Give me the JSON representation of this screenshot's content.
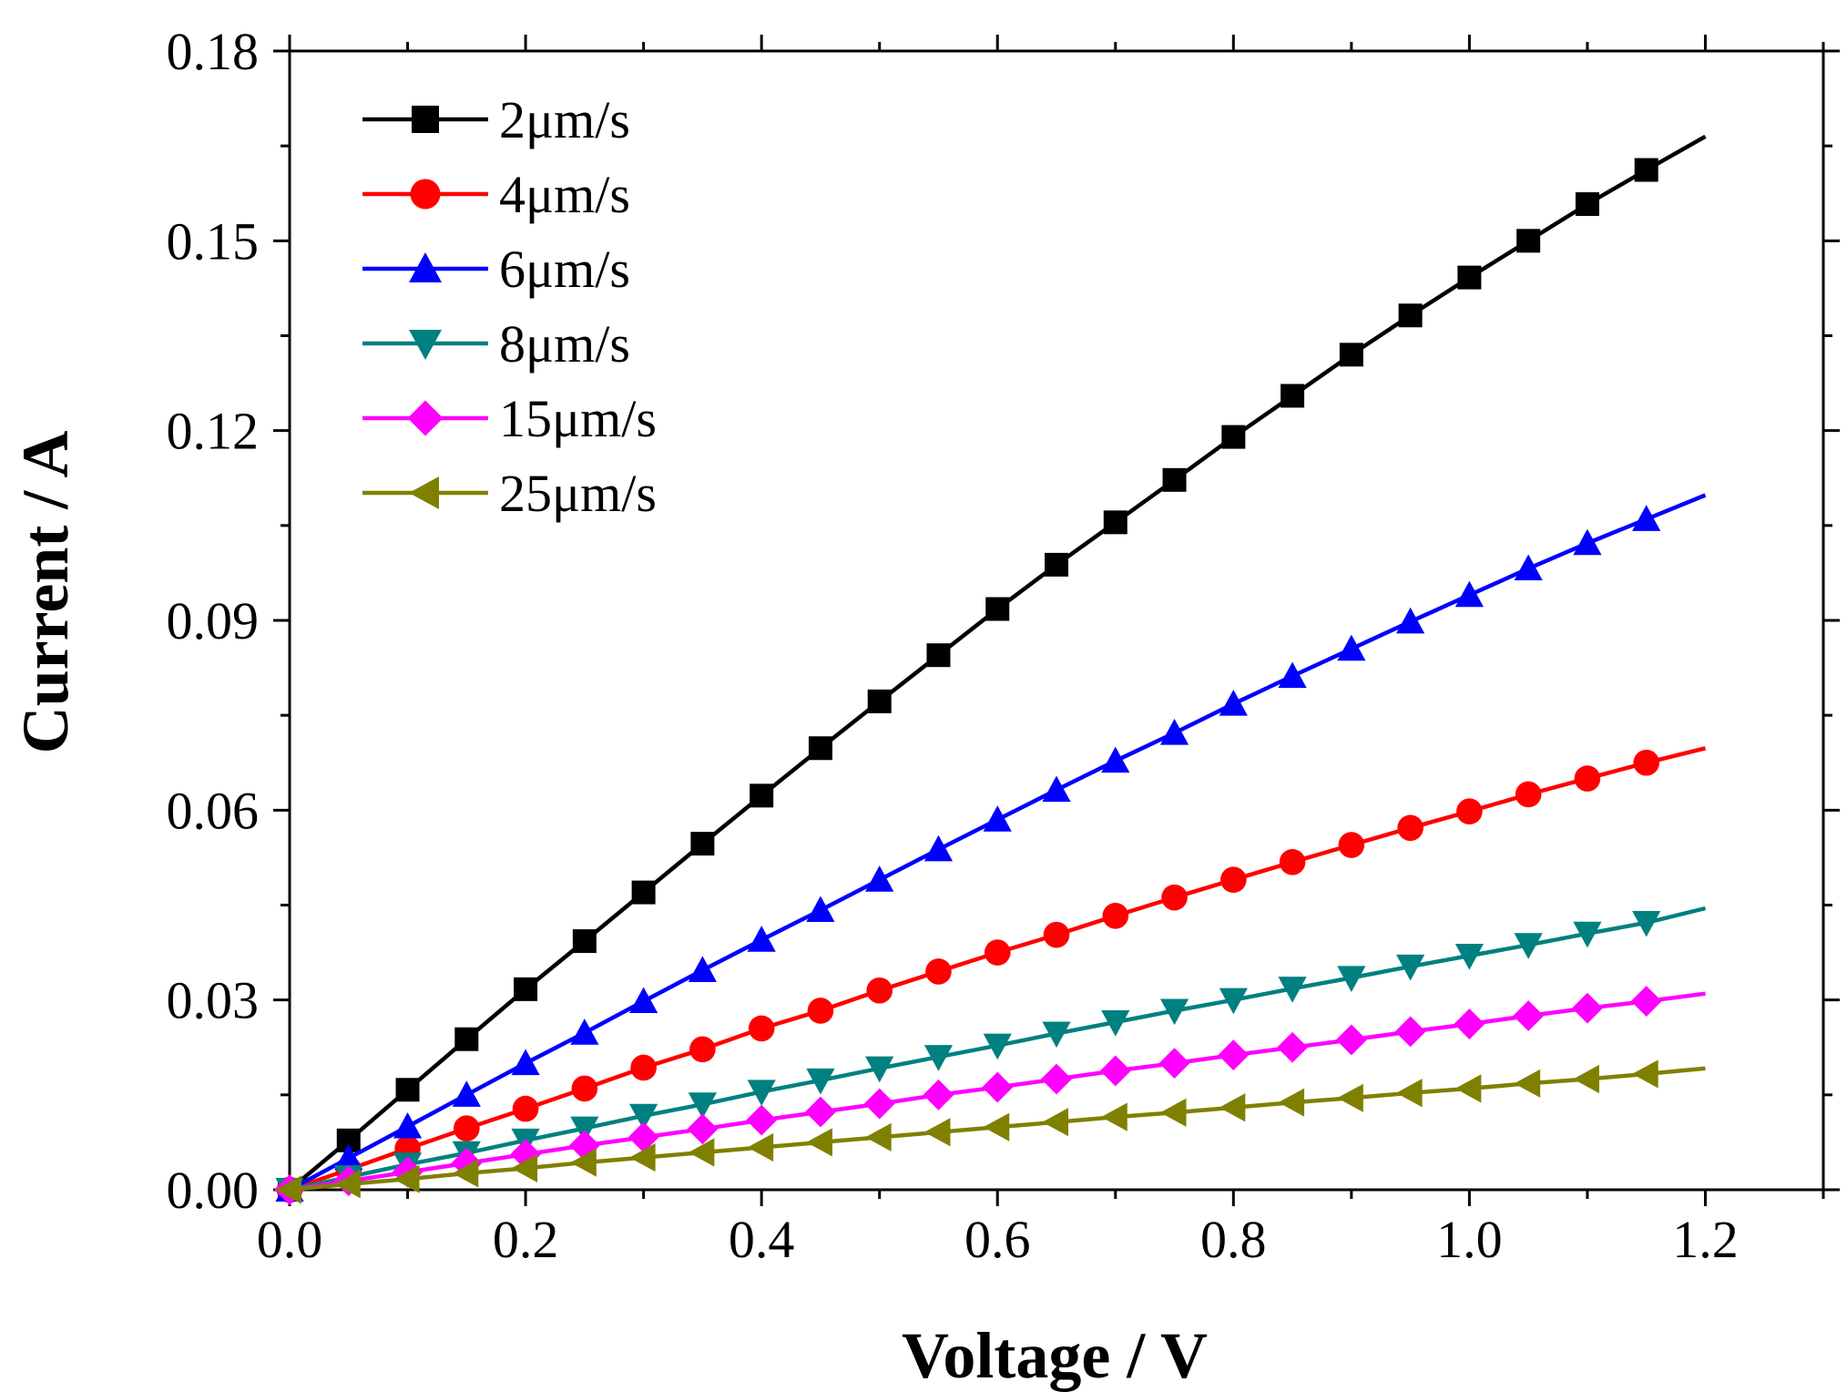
{
  "chart_data": {
    "type": "line",
    "title": "",
    "xlabel": "Voltage / V",
    "ylabel": "Current / A",
    "xlim": [
      0,
      1.3
    ],
    "ylim": [
      0,
      0.18
    ],
    "xticks": [
      0.0,
      0.2,
      0.4,
      0.6,
      0.8,
      1.0,
      1.2
    ],
    "xtick_labels": [
      "0.0",
      "0.2",
      "0.4",
      "0.6",
      "0.8",
      "1.0",
      "1.2"
    ],
    "yticks": [
      0.0,
      0.03,
      0.06,
      0.09,
      0.12,
      0.15,
      0.18
    ],
    "ytick_labels": [
      "0.00",
      "0.03",
      "0.06",
      "0.09",
      "0.12",
      "0.15",
      "0.18"
    ],
    "grid": false,
    "legend_position": "top-left",
    "x": [
      0.0,
      0.05,
      0.1,
      0.15,
      0.2,
      0.25,
      0.3,
      0.35,
      0.4,
      0.45,
      0.5,
      0.55,
      0.6,
      0.65,
      0.7,
      0.75,
      0.8,
      0.85,
      0.9,
      0.95,
      1.0,
      1.05,
      1.1,
      1.15,
      1.2
    ],
    "series": [
      {
        "name": "2μm/s",
        "color": "#000000",
        "marker": "square",
        "values": [
          0.0,
          0.0078,
          0.0158,
          0.0238,
          0.0317,
          0.0393,
          0.047,
          0.0547,
          0.0623,
          0.0698,
          0.0772,
          0.0845,
          0.0918,
          0.0988,
          0.1055,
          0.1122,
          0.119,
          0.1255,
          0.132,
          0.1382,
          0.1442,
          0.15,
          0.1558,
          0.1612,
          0.1665
        ]
      },
      {
        "name": "4μm/s",
        "color": "#ff0000",
        "marker": "circle",
        "values": [
          0.0,
          0.0032,
          0.0065,
          0.0097,
          0.0128,
          0.016,
          0.0193,
          0.0222,
          0.0255,
          0.0283,
          0.0315,
          0.0345,
          0.0375,
          0.0403,
          0.0433,
          0.0462,
          0.049,
          0.0518,
          0.0545,
          0.0572,
          0.0598,
          0.0625,
          0.065,
          0.0675,
          0.0698
        ]
      },
      {
        "name": "6μm/s",
        "color": "#0000ff",
        "marker": "triangle-up",
        "values": [
          0.0,
          0.005,
          0.01,
          0.015,
          0.02,
          0.0248,
          0.0298,
          0.0347,
          0.0395,
          0.0442,
          0.049,
          0.0538,
          0.0585,
          0.0632,
          0.0678,
          0.0722,
          0.0768,
          0.0812,
          0.0855,
          0.0898,
          0.094,
          0.0982,
          0.1022,
          0.106,
          0.1098
        ]
      },
      {
        "name": "8μm/s",
        "color": "#008080",
        "marker": "triangle-down",
        "values": [
          0.0,
          0.002,
          0.004,
          0.0058,
          0.0078,
          0.0097,
          0.0117,
          0.0135,
          0.0155,
          0.0173,
          0.0192,
          0.021,
          0.0228,
          0.0247,
          0.0265,
          0.0283,
          0.03,
          0.0318,
          0.0335,
          0.0353,
          0.037,
          0.0387,
          0.0405,
          0.0422,
          0.0445
        ]
      },
      {
        "name": "15μm/s",
        "color": "#ff00ff",
        "marker": "diamond",
        "values": [
          0.0,
          0.0014,
          0.0028,
          0.0042,
          0.0056,
          0.007,
          0.0083,
          0.0096,
          0.011,
          0.0123,
          0.0136,
          0.015,
          0.0162,
          0.0175,
          0.0188,
          0.02,
          0.0213,
          0.0225,
          0.0237,
          0.025,
          0.0262,
          0.0275,
          0.0287,
          0.0298,
          0.031
        ]
      },
      {
        "name": "25μm/s",
        "color": "#808000",
        "marker": "triangle-left",
        "values": [
          0.0,
          0.0009,
          0.0017,
          0.0026,
          0.0034,
          0.0043,
          0.0051,
          0.0059,
          0.0067,
          0.0075,
          0.0083,
          0.0091,
          0.0099,
          0.0107,
          0.0115,
          0.0122,
          0.013,
          0.0138,
          0.0145,
          0.0153,
          0.016,
          0.0168,
          0.0175,
          0.0183,
          0.0192
        ]
      }
    ]
  }
}
